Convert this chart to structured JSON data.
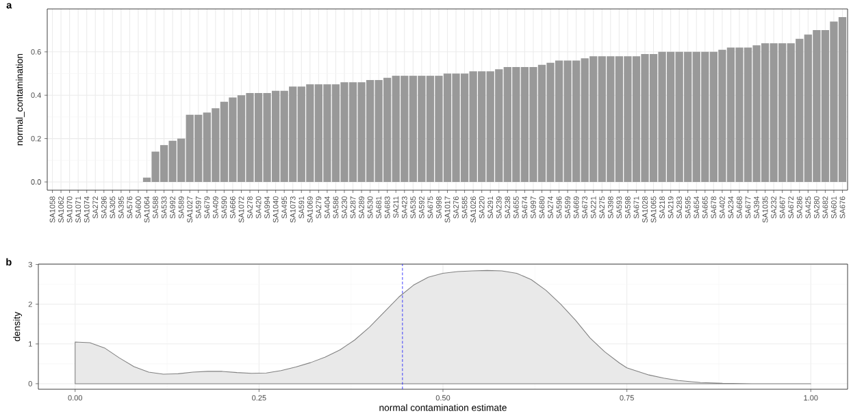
{
  "chart_data": [
    {
      "type": "bar",
      "title": "a",
      "ylabel": "normal_contamination",
      "categories": [
        "SA1058",
        "SA1062",
        "SA1070",
        "SA1071",
        "SA1074",
        "SA272",
        "SA296",
        "SA305",
        "SA395",
        "SA576",
        "SA600",
        "SA1064",
        "SA588",
        "SA533",
        "SA992",
        "SA589",
        "SA1027",
        "SA597",
        "SA679",
        "SA409",
        "SA590",
        "SA666",
        "SA1072",
        "SA278",
        "SA420",
        "SA994",
        "SA1040",
        "SA495",
        "SA1073",
        "SA591",
        "SA1069",
        "SA279",
        "SA404",
        "SA586",
        "SA230",
        "SA287",
        "SA289",
        "SA530",
        "SA681",
        "SA683",
        "SA211",
        "SA423",
        "SA535",
        "SA592",
        "SA675",
        "SA998",
        "SA1017",
        "SA276",
        "SA585",
        "SA1026",
        "SA220",
        "SA291",
        "SA239",
        "SA238",
        "SA655",
        "SA674",
        "SA997",
        "SA680",
        "SA274",
        "SA596",
        "SA599",
        "SA669",
        "SA673",
        "SA221",
        "SA275",
        "SA398",
        "SA593",
        "SA598",
        "SA671",
        "SA1028",
        "SA1065",
        "SA218",
        "SA219",
        "SA283",
        "SA595",
        "SA654",
        "SA665",
        "SA678",
        "SA402",
        "SA234",
        "SA668",
        "SA677",
        "SA394",
        "SA1035",
        "SA232",
        "SA667",
        "SA672",
        "SA286",
        "SA425",
        "SA280",
        "SA682",
        "SA601",
        "SA676"
      ],
      "values": [
        0,
        0,
        0,
        0,
        0,
        0,
        0,
        0,
        0,
        0,
        0,
        0.02,
        0.14,
        0.17,
        0.19,
        0.2,
        0.31,
        0.31,
        0.32,
        0.34,
        0.37,
        0.39,
        0.4,
        0.41,
        0.41,
        0.41,
        0.42,
        0.42,
        0.44,
        0.44,
        0.45,
        0.45,
        0.45,
        0.45,
        0.46,
        0.46,
        0.46,
        0.47,
        0.47,
        0.48,
        0.49,
        0.49,
        0.49,
        0.49,
        0.49,
        0.49,
        0.5,
        0.5,
        0.5,
        0.51,
        0.51,
        0.51,
        0.52,
        0.53,
        0.53,
        0.53,
        0.53,
        0.54,
        0.55,
        0.56,
        0.56,
        0.56,
        0.57,
        0.58,
        0.58,
        0.58,
        0.58,
        0.58,
        0.58,
        0.59,
        0.59,
        0.6,
        0.6,
        0.6,
        0.6,
        0.6,
        0.6,
        0.6,
        0.61,
        0.62,
        0.62,
        0.62,
        0.63,
        0.64,
        0.64,
        0.64,
        0.64,
        0.66,
        0.68,
        0.7,
        0.7,
        0.74,
        0.76
      ],
      "color": "#999999",
      "ylim": [
        -0.038,
        0.798
      ],
      "yticks": [
        {
          "value": 0,
          "label": "0.0"
        },
        {
          "value": 0.2,
          "label": "0.2"
        },
        {
          "value": 0.4,
          "label": "0.4"
        },
        {
          "value": 0.6,
          "label": "0.6"
        }
      ],
      "grid": true
    },
    {
      "type": "area",
      "title": "b",
      "xlabel": "normal contamination estimate",
      "ylabel": "density",
      "series": [
        {
          "color": "#808080",
          "x": [
            0,
            0.02,
            0.04,
            0.06,
            0.08,
            0.1,
            0.12,
            0.14,
            0.16,
            0.18,
            0.2,
            0.22,
            0.24,
            0.26,
            0.28,
            0.3,
            0.32,
            0.34,
            0.36,
            0.38,
            0.4,
            0.42,
            0.44,
            0.46,
            0.48,
            0.5,
            0.52,
            0.54,
            0.56,
            0.58,
            0.6,
            0.62,
            0.64,
            0.66,
            0.68,
            0.7,
            0.72,
            0.74,
            0.75,
            0.78,
            0.8,
            0.82,
            0.85,
            0.88,
            0.92,
            0.96,
            1.0
          ],
          "values": [
            1.05,
            1.03,
            0.9,
            0.65,
            0.43,
            0.29,
            0.24,
            0.25,
            0.29,
            0.31,
            0.31,
            0.28,
            0.26,
            0.27,
            0.33,
            0.42,
            0.53,
            0.67,
            0.85,
            1.1,
            1.42,
            1.8,
            2.18,
            2.48,
            2.68,
            2.78,
            2.82,
            2.84,
            2.85,
            2.84,
            2.78,
            2.62,
            2.35,
            2.0,
            1.6,
            1.15,
            0.8,
            0.52,
            0.4,
            0.22,
            0.14,
            0.08,
            0.03,
            0.01,
            0,
            0,
            0
          ]
        }
      ],
      "xlim": [
        -0.05,
        1.05
      ],
      "ylim": [
        -0.14,
        3.01
      ],
      "xticks": [
        {
          "value": 0,
          "label": "0.00"
        },
        {
          "value": 0.25,
          "label": "0.25"
        },
        {
          "value": 0.5,
          "label": "0.50"
        },
        {
          "value": 0.75,
          "label": "0.75"
        },
        {
          "value": 1,
          "label": "1.00"
        }
      ],
      "yticks": [
        0,
        1,
        2,
        3
      ],
      "ref_lines": [
        {
          "axis": "x",
          "value": 0.445,
          "color": "#0000ff",
          "line_style": "dashed"
        }
      ],
      "grid": true
    }
  ]
}
